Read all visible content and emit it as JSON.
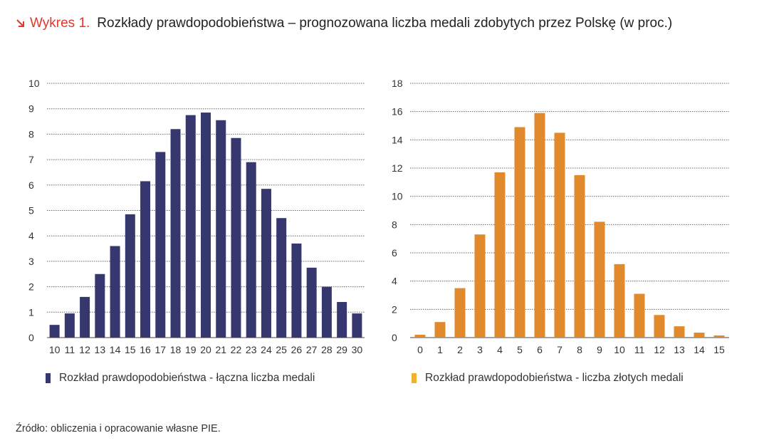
{
  "header": {
    "figure_label": "Wykres 1.",
    "title": "Rozkłady prawdopodobieństwa – prognozowana liczba medali zdobytych przez Polskę (w proc.)",
    "accent_color": "#e2372c"
  },
  "source": "Źródło: obliczenia i opracowanie własne PIE.",
  "chart_data": [
    {
      "type": "bar",
      "title": "",
      "xlabel": "",
      "ylabel": "",
      "color": "#36376e",
      "categories": [
        "10",
        "11",
        "12",
        "13",
        "14",
        "15",
        "16",
        "17",
        "18",
        "19",
        "20",
        "21",
        "22",
        "23",
        "24",
        "25",
        "26",
        "27",
        "28",
        "29",
        "30"
      ],
      "values": [
        0.5,
        0.95,
        1.6,
        2.5,
        3.6,
        4.85,
        6.15,
        7.3,
        8.2,
        8.75,
        8.85,
        8.55,
        7.85,
        6.9,
        5.85,
        4.7,
        3.7,
        2.75,
        2.0,
        1.4,
        0.95
      ],
      "ylim": [
        0,
        10
      ],
      "yticks": [
        "0",
        "1",
        "2",
        "3",
        "4",
        "5",
        "6",
        "7",
        "8",
        "9",
        "10"
      ],
      "grid": "dotted horizontal",
      "legend": "Rozkład prawdopodobieństwa - łączna liczba medali"
    },
    {
      "type": "bar",
      "title": "",
      "xlabel": "",
      "ylabel": "",
      "color": "#e08a2c",
      "categories": [
        "0",
        "1",
        "2",
        "3",
        "4",
        "5",
        "6",
        "7",
        "8",
        "9",
        "10",
        "11",
        "12",
        "13",
        "14",
        "15"
      ],
      "values": [
        0.2,
        1.1,
        3.5,
        7.3,
        11.7,
        14.9,
        15.9,
        14.5,
        11.5,
        8.2,
        5.2,
        3.1,
        1.6,
        0.8,
        0.35,
        0.15
      ],
      "ylim": [
        0,
        18
      ],
      "yticks": [
        "0",
        "2",
        "4",
        "6",
        "8",
        "10",
        "12",
        "14",
        "16",
        "18"
      ],
      "grid": "dotted horizontal",
      "legend": "Rozkład prawdopodobieństwa - liczba złotych medali"
    }
  ]
}
